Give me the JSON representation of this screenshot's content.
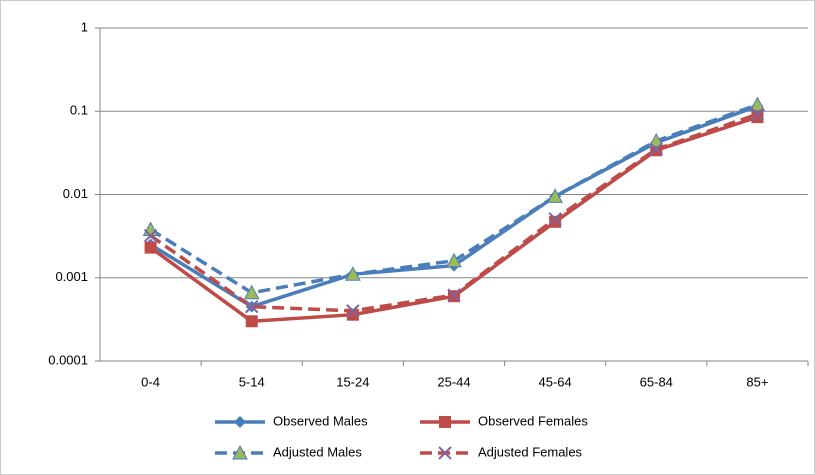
{
  "chart_data": {
    "type": "line",
    "log_scale": true,
    "grid": true,
    "categories": [
      "0-4",
      "5-14",
      "15-24",
      "25-44",
      "45-64",
      "65-84",
      "85+"
    ],
    "ylim": [
      0.0001,
      1
    ],
    "yticks": [
      0.0001,
      0.001,
      0.01,
      0.1,
      1
    ],
    "legend": "bottom",
    "series": [
      {
        "name": "Observed Males",
        "color": "#4a7ebb",
        "marker": "diamond",
        "dashed": false,
        "values": [
          0.0025,
          0.00045,
          0.0011,
          0.0014,
          0.0095,
          0.042,
          0.115
        ]
      },
      {
        "name": "Observed Females",
        "color": "#be4b48",
        "marker": "square",
        "dashed": false,
        "values": [
          0.0023,
          0.0003,
          0.00036,
          0.0006,
          0.0047,
          0.034,
          0.085
        ]
      },
      {
        "name": "Adjusted Males",
        "color": "#4a7ebb",
        "marker": "triangle",
        "marker_color": "#9bbb59",
        "dashed": true,
        "values": [
          0.0038,
          0.00066,
          0.0011,
          0.0016,
          0.0095,
          0.044,
          0.12
        ]
      },
      {
        "name": "Adjusted Females",
        "color": "#be4b48",
        "marker": "cross",
        "marker_color": "#8064a2",
        "dashed": true,
        "values": [
          0.0032,
          0.00045,
          0.0004,
          0.00062,
          0.0051,
          0.035,
          0.092
        ]
      }
    ]
  }
}
